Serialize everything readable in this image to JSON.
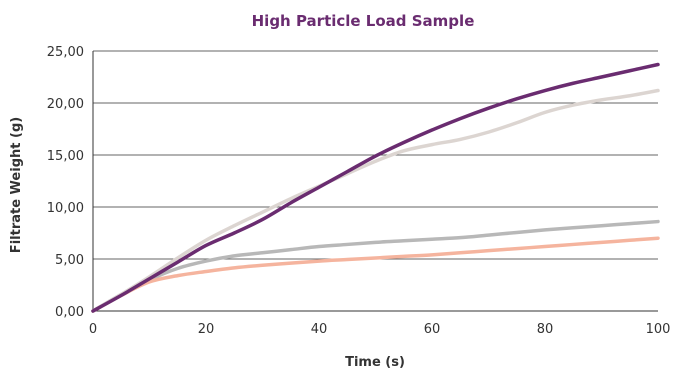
{
  "chart_data": {
    "type": "line",
    "title": "High Particle Load Sample",
    "xlabel": "Time (s)",
    "ylabel": "Filtrate Weight (g)",
    "xlim": [
      0,
      100
    ],
    "ylim": [
      0,
      25
    ],
    "x_ticks": [
      "0",
      "20",
      "40",
      "60",
      "80",
      "100"
    ],
    "y_ticks": [
      "0,00",
      "5,00",
      "10,00",
      "15,00",
      "20,00",
      "25,00"
    ],
    "grid": "horizontal",
    "legend": "none",
    "x": [
      0,
      5,
      10,
      15,
      20,
      25,
      30,
      35,
      40,
      45,
      50,
      55,
      60,
      65,
      70,
      75,
      80,
      85,
      90,
      95,
      100
    ],
    "series": [
      {
        "color": "#6a2c70",
        "values": [
          0,
          1.5,
          3.1,
          4.7,
          6.3,
          7.5,
          8.8,
          10.4,
          11.9,
          13.4,
          14.9,
          16.2,
          17.4,
          18.5,
          19.5,
          20.4,
          21.2,
          21.9,
          22.5,
          23.1,
          23.7
        ]
      },
      {
        "color": "#dcd5d1",
        "values": [
          0,
          1.6,
          3.3,
          5.1,
          6.8,
          8.2,
          9.5,
          10.8,
          12.0,
          13.2,
          14.4,
          15.4,
          16.0,
          16.5,
          17.2,
          18.1,
          19.1,
          19.8,
          20.3,
          20.7,
          21.2
        ]
      },
      {
        "color": "#b8b8b8",
        "values": [
          0,
          1.6,
          3.0,
          4.1,
          4.8,
          5.3,
          5.6,
          5.9,
          6.2,
          6.4,
          6.6,
          6.75,
          6.9,
          7.05,
          7.3,
          7.55,
          7.8,
          8.0,
          8.2,
          8.4,
          8.6
        ]
      },
      {
        "color": "#f5b49e",
        "values": [
          0,
          1.5,
          2.8,
          3.4,
          3.8,
          4.15,
          4.4,
          4.6,
          4.8,
          4.95,
          5.1,
          5.25,
          5.4,
          5.6,
          5.8,
          6.0,
          6.2,
          6.4,
          6.6,
          6.8,
          7.0
        ]
      }
    ]
  }
}
